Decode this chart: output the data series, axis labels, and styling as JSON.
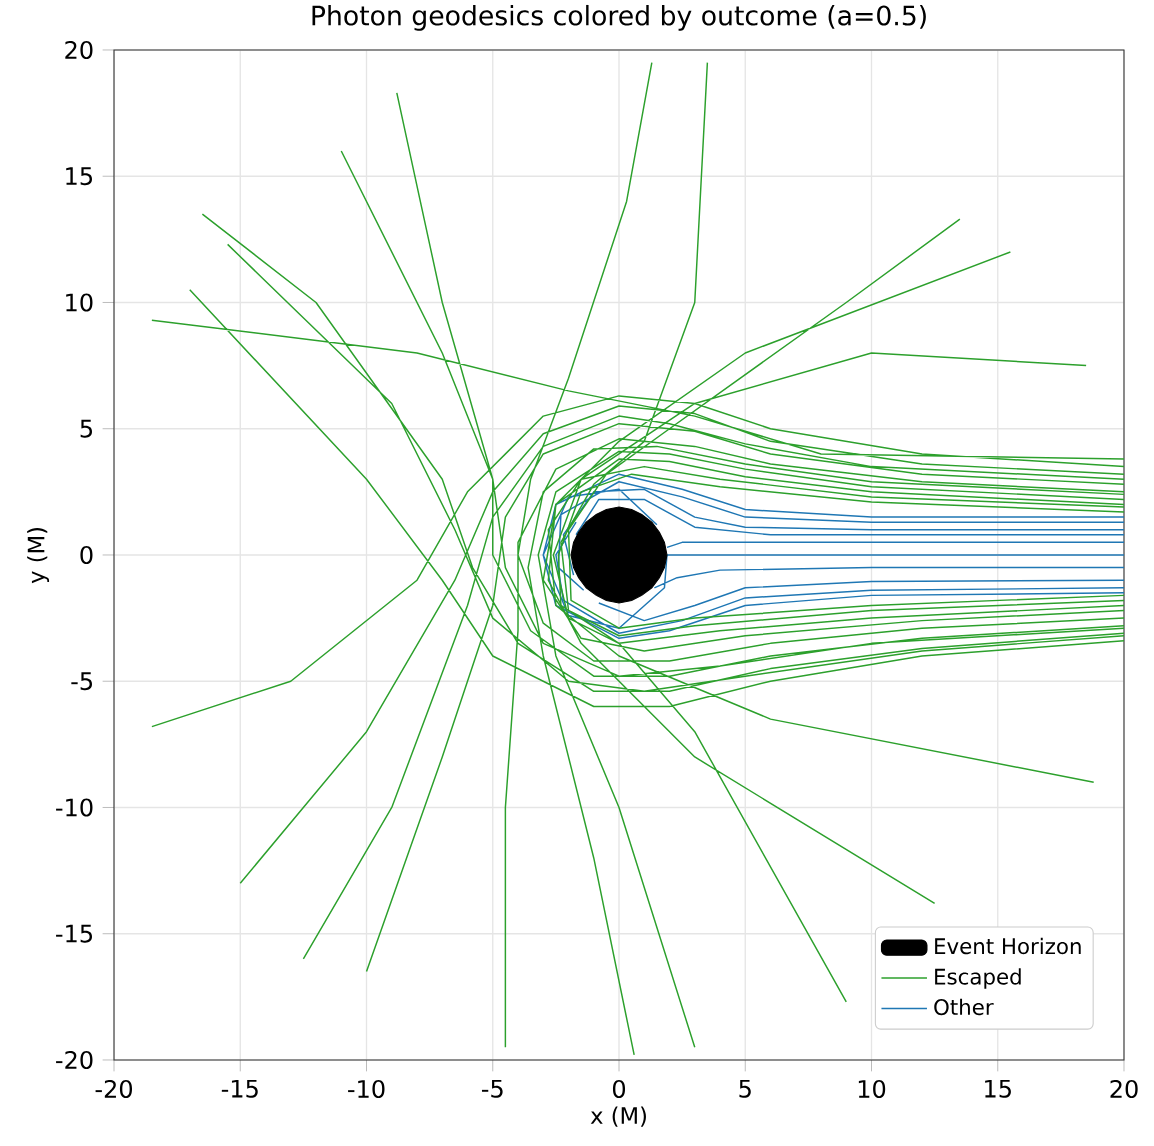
{
  "chart_data": {
    "type": "line",
    "title": "Photon geodesics colored by outcome (a=0.5)",
    "xlabel": "x (M)",
    "ylabel": "y (M)",
    "xlim": [
      -20,
      20
    ],
    "ylim": [
      -20,
      20
    ],
    "xticks": [
      -20,
      -15,
      -10,
      -5,
      0,
      5,
      10,
      15,
      20
    ],
    "yticks": [
      -20,
      -15,
      -10,
      -5,
      0,
      5,
      10,
      15,
      20
    ],
    "grid": true,
    "legend": "bottom right",
    "marker": "none",
    "line_style": "solid",
    "series": [
      {
        "name": "Event Horizon",
        "type": "area",
        "color": "#000000",
        "x": [
          1.9,
          1.8,
          1.6,
          1.3,
          0.9,
          0.5,
          0,
          -0.5,
          -0.9,
          -1.3,
          -1.6,
          -1.8,
          -1.9,
          -1.8,
          -1.6,
          -1.3,
          -0.9,
          -0.5,
          0,
          0.5,
          0.9,
          1.3,
          1.6,
          1.8
        ],
        "values": [
          0,
          0.5,
          0.9,
          1.3,
          1.6,
          1.8,
          1.9,
          1.8,
          1.6,
          1.3,
          0.9,
          0.5,
          0,
          -0.5,
          -0.9,
          -1.3,
          -1.6,
          -1.8,
          -1.9,
          -1.8,
          -1.6,
          -1.3,
          -0.9,
          -0.5
        ]
      },
      {
        "name": "Escaped",
        "color": "#2ca02c",
        "x": [
          20,
          12,
          6,
          3,
          0,
          -3,
          -5,
          -6.5,
          -10,
          -15,
          null,
          20,
          12,
          6,
          3,
          0,
          -3,
          -4.5,
          -5,
          -7,
          -10,
          null,
          20,
          12,
          6,
          3,
          0,
          -2.5,
          -4,
          -4,
          -4.5,
          -4.5,
          null,
          20,
          10,
          5,
          2,
          0,
          -2.5,
          -3.2,
          -2.5,
          0,
          3,
          null,
          20,
          10,
          5,
          2,
          0,
          -2.5,
          -2.8,
          -1.5,
          3,
          12.5,
          null,
          20,
          10,
          4,
          1,
          -1.5,
          -2.8,
          -2.5,
          0,
          6,
          18.8,
          null,
          20,
          12,
          6,
          2,
          -1,
          -3.5,
          -5,
          -5,
          -7,
          -11,
          null,
          20,
          12,
          6,
          2,
          -1,
          -4,
          -5.8,
          -7,
          -12,
          -16.5,
          null,
          20,
          12,
          6,
          2,
          -1,
          -3,
          -4,
          -3.5,
          -2,
          0.3,
          1.3,
          null,
          20,
          12,
          5,
          1,
          -1.5,
          -3,
          -2.5,
          0,
          5,
          15.5,
          null,
          20,
          10,
          4,
          0,
          -2,
          -2.6,
          -1.5,
          3,
          10,
          18.5,
          null,
          20,
          12,
          6,
          3,
          0,
          -3,
          -6,
          -8,
          -13,
          -18.5,
          null,
          20,
          12,
          6,
          2,
          -1,
          -5,
          -7,
          -10,
          -17,
          null,
          -18.5,
          -8,
          -2,
          3,
          8,
          20,
          null,
          20,
          10,
          4,
          0.5,
          -1.5,
          -2.4,
          -2.3,
          0,
          3,
          9,
          null,
          20,
          10,
          3,
          0,
          -2,
          -2.3,
          -1,
          1,
          3,
          3.5,
          null,
          20,
          10,
          3,
          0,
          -1.9,
          -2,
          -0.5,
          2,
          9,
          13.5,
          null,
          20,
          10,
          4,
          0,
          -3,
          -4.5,
          -5,
          -7,
          -8.8,
          null,
          20,
          12,
          5,
          1,
          -2,
          -5,
          -6.5,
          -9,
          -15.5,
          null,
          20,
          10,
          5,
          2,
          0,
          -3,
          -5,
          -6,
          -9,
          -12.5,
          null,
          20,
          10,
          5,
          1.5,
          -1,
          -3,
          -3.6,
          -3,
          -1,
          0.6
        ],
        "values": [
          3.2,
          3.6,
          4.5,
          5.6,
          5.9,
          4.8,
          2.5,
          -1,
          -7,
          -13,
          null,
          2.8,
          3.2,
          4,
          4.9,
          5.2,
          4,
          1.5,
          -2,
          -8,
          -16.5,
          null,
          2.5,
          2.9,
          3.6,
          4.3,
          4.6,
          3.4,
          0.5,
          -3,
          -10,
          -19.5,
          null,
          2.2,
          2.7,
          3.4,
          4,
          4.1,
          2.5,
          0,
          -4,
          -10,
          -19.5,
          null,
          2,
          2.5,
          3.1,
          3.7,
          3.8,
          2,
          -1,
          -3.5,
          -8,
          -13.8,
          null,
          1.9,
          2.3,
          3,
          3.5,
          3,
          1,
          -2,
          -4,
          -6.5,
          -9,
          null,
          -2.8,
          -3.3,
          -4,
          -4.8,
          -4.8,
          -3,
          0,
          3,
          8,
          16,
          null,
          -3.1,
          -3.7,
          -4.5,
          -5.4,
          -5.4,
          -3.5,
          -0.5,
          3,
          10,
          13.5,
          null,
          -2.5,
          -2.9,
          -3.5,
          -4.2,
          -4.2,
          -2.7,
          0,
          3,
          7,
          14,
          19.5,
          null,
          -2.2,
          -2.6,
          -3.2,
          -3.8,
          -3.3,
          -1,
          2,
          4.5,
          8,
          12,
          null,
          -2,
          -2.5,
          -3,
          -3.5,
          -2.5,
          0,
          3,
          6,
          8,
          7.5,
          null,
          3.5,
          4,
          5,
          6,
          6.3,
          5.5,
          2.5,
          -1,
          -5,
          -6.8,
          null,
          -3.4,
          -4,
          -5,
          -6,
          -6,
          -4,
          -1,
          3,
          10.5,
          null,
          9.3,
          8,
          6.5,
          5.5,
          4,
          3.8,
          null,
          1.7,
          2.1,
          2.7,
          3.2,
          2.5,
          0,
          -2,
          -3.5,
          -7,
          -17.7,
          null,
          -1.8,
          -2.2,
          -2.8,
          -3.2,
          -2.2,
          0.5,
          2.8,
          4.5,
          10,
          19.5,
          null,
          -1.6,
          -2,
          -2.5,
          -2.9,
          -1.8,
          1,
          3.2,
          5,
          10,
          13.3,
          null,
          -2.9,
          -3.5,
          -4.4,
          -4.8,
          -3.5,
          -0.5,
          3,
          10,
          18.3,
          null,
          -3.2,
          -3.8,
          -4.8,
          -5.4,
          -5,
          -2.5,
          1,
          6,
          12.3,
          null,
          3,
          3.5,
          4.4,
          5.2,
          5.5,
          4.3,
          1.5,
          -2,
          -10,
          -16,
          null,
          2.4,
          2.9,
          3.6,
          4.3,
          4.2,
          2.5,
          -0.5,
          -4,
          -12,
          -19.8
        ]
      },
      {
        "name": "Other",
        "color": "#1f77b4",
        "x": [
          20,
          10,
          5,
          2.5,
          0,
          -2.5,
          -3,
          -2,
          0,
          1.8,
          1.9,
          null,
          20,
          10,
          5,
          3,
          1,
          -1,
          -2.2,
          -1.8,
          null,
          20,
          2.5,
          1.9,
          null,
          20,
          1.9,
          null,
          20,
          10,
          4,
          2.3,
          1.4,
          null,
          20,
          10,
          5,
          3,
          1,
          -0.8,
          null,
          20,
          10,
          5,
          2,
          0,
          -2.5,
          -3,
          -2,
          0,
          1.5,
          null,
          20,
          10,
          5,
          2.5,
          0,
          -2.2,
          -2.5,
          -1.7,
          null,
          20,
          10,
          5,
          2.5,
          0,
          -2.3,
          -2.4,
          -1.4,
          null,
          20,
          6,
          3,
          1,
          -0.8,
          -1.7
        ],
        "values": [
          1.5,
          1.5,
          1.8,
          2.6,
          3.2,
          2,
          0,
          -2.4,
          -2.9,
          -1.3,
          0,
          null,
          1,
          1,
          1.1,
          1.5,
          2.6,
          2.5,
          0.8,
          -0.8,
          null,
          0.5,
          0.5,
          0.3,
          null,
          0,
          0,
          null,
          -0.5,
          -0.5,
          -0.6,
          -0.9,
          -1.3,
          null,
          -1,
          -1.05,
          -1.3,
          -2,
          -2.6,
          -1.9,
          null,
          -1.5,
          -1.6,
          -2,
          -3,
          -3.3,
          -2,
          0,
          2.3,
          2.6,
          1.2,
          null,
          -1.3,
          -1.4,
          -1.7,
          -2.6,
          -3.1,
          -1.8,
          0,
          1.3,
          null,
          1.3,
          1.3,
          1.5,
          2.3,
          2.9,
          1.6,
          -0.5,
          -1.4,
          null,
          0.8,
          0.8,
          1.1,
          2.2,
          2.2,
          0.8
        ]
      }
    ]
  }
}
